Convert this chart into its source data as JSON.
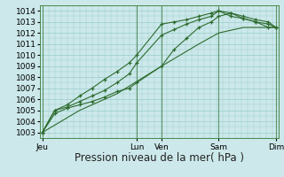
{
  "xlabel": "Pression niveau de la mer( hPa )",
  "bg_color": "#cce8ea",
  "grid_color": "#99cccc",
  "line_color": "#2d6b2d",
  "ylim_min": 1002.5,
  "ylim_max": 1014.5,
  "yticks": [
    1003,
    1004,
    1005,
    1006,
    1007,
    1008,
    1009,
    1010,
    1011,
    1012,
    1013,
    1014
  ],
  "xlim_min": -0.1,
  "xlim_max": 9.5,
  "x_tick_positions": [
    0,
    3.8,
    4.8,
    7.1,
    9.4
  ],
  "x_tick_labels": [
    "Jeu",
    "Lun",
    "Ven",
    "Sam",
    "Dim"
  ],
  "vline_positions": [
    0,
    3.8,
    4.8,
    7.1,
    9.4
  ],
  "line1_x": [
    0,
    0.5,
    1.0,
    1.5,
    2.0,
    2.5,
    3.0,
    3.5,
    3.8,
    4.8,
    5.3,
    5.8,
    6.3,
    6.8,
    7.1,
    7.6,
    8.1,
    8.6,
    9.1,
    9.4
  ],
  "line1_y": [
    1003.0,
    1004.7,
    1005.2,
    1005.5,
    1005.8,
    1006.2,
    1006.7,
    1007.0,
    1007.5,
    1009.0,
    1010.5,
    1011.5,
    1012.5,
    1013.0,
    1013.5,
    1013.8,
    1013.5,
    1013.2,
    1013.0,
    1012.5
  ],
  "line2_x": [
    0,
    0.5,
    1.0,
    1.5,
    2.0,
    2.5,
    3.0,
    3.5,
    3.8,
    4.8,
    5.3,
    5.8,
    6.3,
    6.8,
    7.1,
    7.6,
    8.1,
    8.6,
    9.1,
    9.4
  ],
  "line2_y": [
    1003.0,
    1005.0,
    1005.3,
    1005.8,
    1006.3,
    1006.8,
    1007.5,
    1008.3,
    1009.3,
    1011.8,
    1012.3,
    1012.8,
    1013.2,
    1013.5,
    1014.0,
    1013.8,
    1013.3,
    1013.0,
    1012.5,
    1012.5
  ],
  "line3_x": [
    0,
    0.5,
    1.0,
    1.5,
    2.0,
    2.5,
    3.0,
    3.5,
    3.8,
    4.8,
    5.3,
    5.8,
    6.3,
    6.8,
    7.1,
    7.6,
    8.1,
    8.6,
    9.1,
    9.4
  ],
  "line3_y": [
    1003.0,
    1005.0,
    1005.5,
    1006.3,
    1007.0,
    1007.8,
    1008.5,
    1009.3,
    1010.0,
    1012.8,
    1013.0,
    1013.2,
    1013.5,
    1013.8,
    1014.0,
    1013.5,
    1013.3,
    1013.0,
    1012.8,
    1012.5
  ],
  "line4_x": [
    0,
    1.5,
    3.0,
    4.8,
    6.3,
    7.1,
    8.1,
    9.4
  ],
  "line4_y": [
    1003.0,
    1005.0,
    1006.5,
    1009.0,
    1011.0,
    1012.0,
    1012.5,
    1012.5
  ],
  "font_size": 6.5,
  "xlabel_fontsize": 8.5
}
